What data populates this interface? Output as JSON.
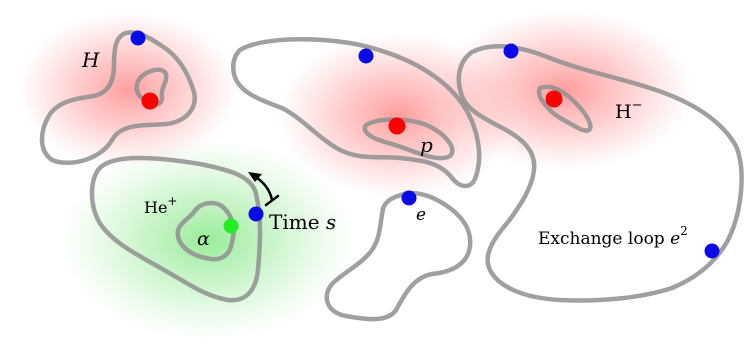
{
  "labels": {
    "H": "H",
    "p": "p",
    "H_minus_base": "H",
    "H_minus_sup": "−",
    "He_base": "He",
    "He_sup": "+",
    "alpha": "α",
    "e": "e",
    "time": "Time ",
    "time_var": "s",
    "exchange": "Exchange loop ",
    "exchange_var": "e",
    "exchange_sup": "2"
  },
  "colors": {
    "proton": "#ff0000",
    "electron": "#0a0ae8",
    "alpha": "#22ee22",
    "loop": "#8f8f8f",
    "glow_red": "#ff5555",
    "glow_green": "#55dd55"
  }
}
